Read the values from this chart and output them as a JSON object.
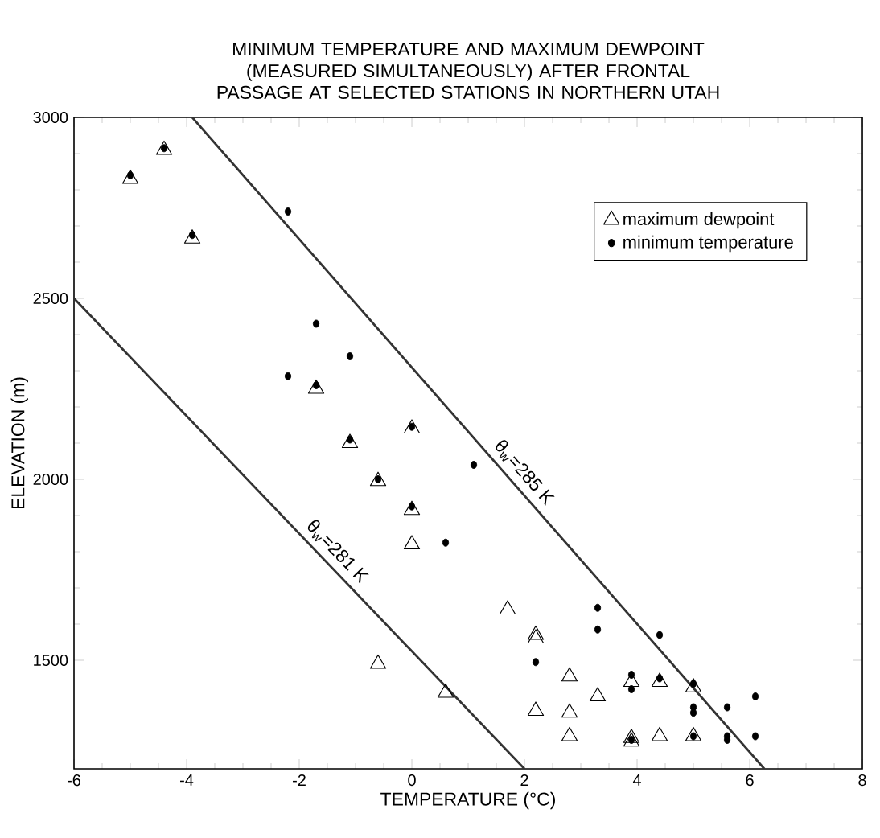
{
  "chart_data": {
    "type": "scatter",
    "title": "MINIMUM TEMPERATURE AND MAXIMUM DEWPOINT (MEASURED SIMULTANEOUSLY) AFTER FRONTAL PASSAGE AT SELECTED STATIONS IN NORTHERN UTAH",
    "xlabel": "TEMPERATURE (°C)",
    "ylabel": "ELEVATION (m)",
    "xlim": [
      -6,
      8
    ],
    "xticks": [
      -6,
      -4,
      -2,
      0,
      2,
      4,
      6,
      8
    ],
    "ylim": [
      1200,
      3000
    ],
    "yticks": [
      1500,
      2000,
      2500,
      3000
    ],
    "grid": false,
    "legend": "top right",
    "series": [
      {
        "name": "maximum dewpoint",
        "color": "#000000",
        "marker": "triangle",
        "x": [
          -5.0,
          -4.4,
          -3.9,
          -1.7,
          -1.1,
          0.0,
          -0.6,
          0.0,
          0.0,
          -0.6,
          0.6,
          1.7,
          2.2,
          2.2,
          2.2,
          2.8,
          2.8,
          2.8,
          3.3,
          3.9,
          3.9,
          3.9,
          4.4,
          4.4,
          5.0,
          5.0
        ],
        "values": [
          2830,
          2910,
          2665,
          2250,
          2100,
          2140,
          1995,
          1915,
          1820,
          1490,
          1410,
          1640,
          1570,
          1560,
          1360,
          1455,
          1355,
          1290,
          1400,
          1440,
          1285,
          1275,
          1290,
          1440,
          1425,
          1290
        ]
      },
      {
        "name": "minimum temperature",
        "color": "#000000",
        "marker": "circle",
        "x": [
          -5.0,
          -4.4,
          -3.9,
          -2.2,
          -1.7,
          -1.1,
          -2.2,
          -1.7,
          -1.1,
          0.0,
          -0.6,
          0.0,
          0.6,
          1.1,
          3.3,
          3.3,
          2.2,
          3.9,
          3.9,
          3.9,
          4.4,
          4.4,
          5.0,
          5.0,
          5.0,
          5.0,
          5.6,
          5.6,
          5.6,
          6.1,
          6.1
        ],
        "values": [
          2840,
          2915,
          2675,
          2740,
          2430,
          2340,
          2285,
          2260,
          2110,
          2145,
          2000,
          1925,
          1825,
          2040,
          1645,
          1585,
          1495,
          1460,
          1420,
          1280,
          1570,
          1450,
          1435,
          1370,
          1355,
          1290,
          1370,
          1290,
          1280,
          1400,
          1290
        ]
      },
      {
        "name": "θ$_{w}$=281 K",
        "type": "line",
        "color": "#333333",
        "x": [
          -6,
          2.0
        ],
        "values": [
          2500,
          1200
        ]
      },
      {
        "name": "θ$_{w}$=285 K",
        "type": "line",
        "color": "#333333",
        "x": [
          -3.9,
          6.26
        ],
        "values": [
          3000,
          1200
        ]
      }
    ]
  }
}
